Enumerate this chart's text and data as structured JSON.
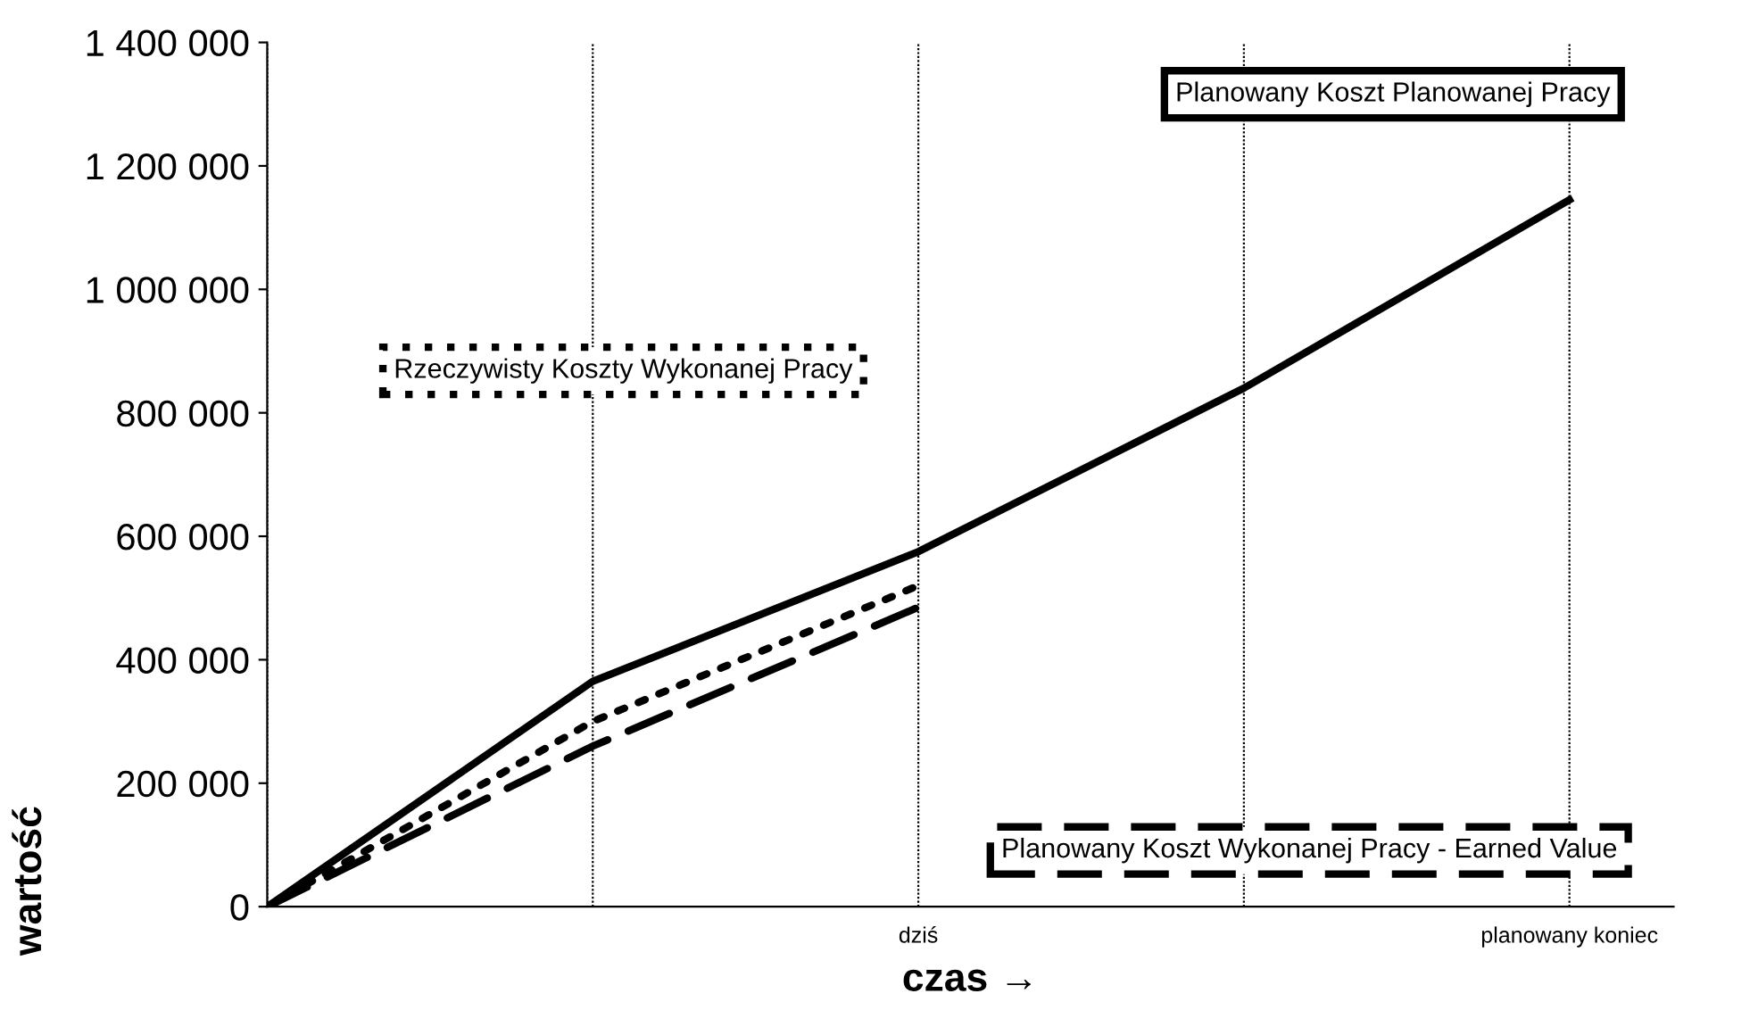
{
  "chart_data": {
    "type": "line",
    "categories": [
      null,
      null,
      "dziś",
      null,
      "planowany koniec"
    ],
    "xlabel": "czas →",
    "ylabel": "wartość",
    "ylim": [
      0,
      1400000
    ],
    "yticks": [
      {
        "value": 0,
        "label": "0"
      },
      {
        "value": 200000,
        "label": "200 000"
      },
      {
        "value": 400000,
        "label": "400 000"
      },
      {
        "value": 600000,
        "label": "600 000"
      },
      {
        "value": 800000,
        "label": "800 000"
      },
      {
        "value": 1000000,
        "label": "1 000 000"
      },
      {
        "value": 1200000,
        "label": "1 200 000"
      },
      {
        "value": 1400000,
        "label": "1 400 000"
      }
    ],
    "grid": "x",
    "legend": false,
    "marker": "none",
    "series": [
      {
        "name": "Planowany Koszt Planowanej Pracy",
        "color": "#000000",
        "line_style": "solid",
        "values": [
          0,
          365000,
          575000,
          840000,
          1145000
        ]
      },
      {
        "name": "Rzeczywisty Koszty Wykonanej Pracy",
        "color": "#000000",
        "line_style": "dotted",
        "values": [
          0,
          300000,
          520000,
          null,
          null
        ]
      },
      {
        "name": "Planowany Koszt Wykonanej Pracy - Earned Value",
        "color": "#000000",
        "line_style": "dashed",
        "values": [
          0,
          260000,
          485000,
          null,
          null
        ]
      }
    ]
  }
}
